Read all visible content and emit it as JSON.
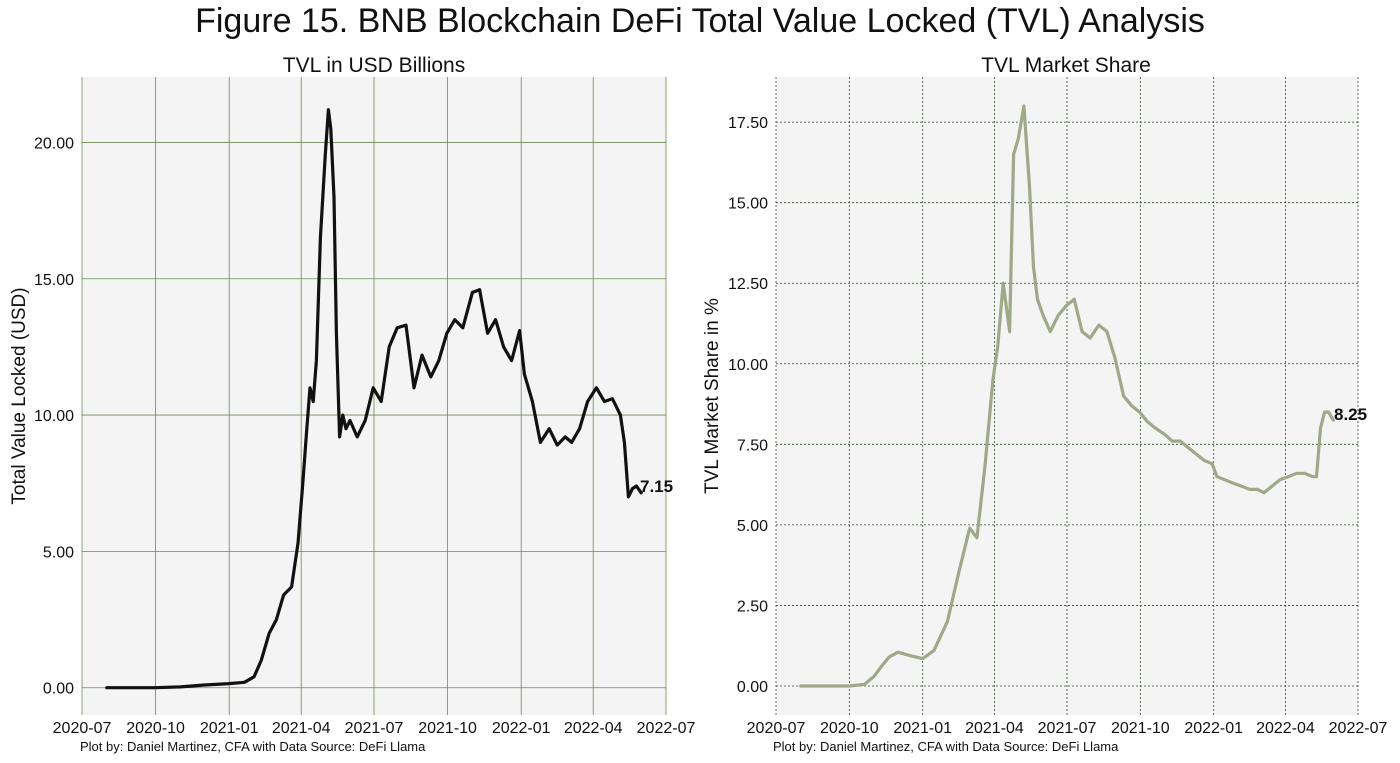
{
  "figure_title": "Figure 15. BNB Blockchain DeFi Total Value Locked (TVL) Analysis",
  "colors": {
    "left_line": "#111111",
    "right_line": "#9fa889",
    "left_grid": "#6f8a55",
    "right_grid": "#2f4a2a",
    "plot_bg": "#f4f4f4"
  },
  "chart_data": [
    {
      "type": "line",
      "title": "TVL in USD Billions",
      "xlabel": "",
      "ylabel": "Total Value Locked (USD)",
      "x_ticks": [
        "2020-07",
        "2020-10",
        "2021-01",
        "2021-04",
        "2021-07",
        "2021-10",
        "2022-01",
        "2022-04",
        "2022-07"
      ],
      "y_ticks": [
        "0.00",
        "5.00",
        "10.00",
        "15.00",
        "20.00"
      ],
      "xlim": [
        "2020-07-01",
        "2022-07-01"
      ],
      "ylim": [
        -1.0,
        22.4
      ],
      "grid": "solid",
      "end_label": "7.15",
      "credit": "Plot by: Daniel Martinez, CFA with Data Source: DeFi Llama",
      "series": [
        {
          "x": [
            "2020-08-01",
            "2020-09-01",
            "2020-10-01",
            "2020-11-01",
            "2020-12-01",
            "2021-01-01",
            "2021-01-20",
            "2021-02-01",
            "2021-02-10",
            "2021-02-20",
            "2021-03-01",
            "2021-03-10",
            "2021-03-20",
            "2021-03-28",
            "2021-04-03",
            "2021-04-08",
            "2021-04-12",
            "2021-04-16",
            "2021-04-20",
            "2021-04-25",
            "2021-05-01",
            "2021-05-05",
            "2021-05-08",
            "2021-05-12",
            "2021-05-15",
            "2021-05-19",
            "2021-05-23",
            "2021-05-27",
            "2021-06-01",
            "2021-06-10",
            "2021-06-20",
            "2021-06-30",
            "2021-07-10",
            "2021-07-20",
            "2021-07-30",
            "2021-08-10",
            "2021-08-20",
            "2021-08-30",
            "2021-09-10",
            "2021-09-20",
            "2021-09-30",
            "2021-10-10",
            "2021-10-20",
            "2021-11-01",
            "2021-11-10",
            "2021-11-20",
            "2021-11-30",
            "2021-12-10",
            "2021-12-20",
            "2021-12-30",
            "2022-01-05",
            "2022-01-15",
            "2022-01-25",
            "2022-02-05",
            "2022-02-15",
            "2022-02-25",
            "2022-03-05",
            "2022-03-15",
            "2022-03-25",
            "2022-04-05",
            "2022-04-15",
            "2022-04-25",
            "2022-05-05",
            "2022-05-10",
            "2022-05-15",
            "2022-05-20",
            "2022-05-25",
            "2022-05-31"
          ],
          "y": [
            0.0,
            0.0,
            0.0,
            0.03,
            0.1,
            0.15,
            0.2,
            0.4,
            1.0,
            2.0,
            2.5,
            3.4,
            3.7,
            5.3,
            7.5,
            9.5,
            11.0,
            10.5,
            12.0,
            16.5,
            19.5,
            21.2,
            20.5,
            18.0,
            13.0,
            9.2,
            10.0,
            9.5,
            9.8,
            9.2,
            9.8,
            11.0,
            10.5,
            12.5,
            13.2,
            13.3,
            11.0,
            12.2,
            11.4,
            12.0,
            13.0,
            13.5,
            13.2,
            14.5,
            14.6,
            13.0,
            13.5,
            12.5,
            12.0,
            13.1,
            11.5,
            10.5,
            9.0,
            9.5,
            8.9,
            9.2,
            9.0,
            9.5,
            10.5,
            11.0,
            10.5,
            10.6,
            10.0,
            9.0,
            7.0,
            7.3,
            7.4,
            7.15
          ],
          "color": "#111111"
        }
      ]
    },
    {
      "type": "line",
      "title": "TVL Market Share",
      "xlabel": "",
      "ylabel": "TVL Market Share in %",
      "x_ticks": [
        "2020-07",
        "2020-10",
        "2021-01",
        "2021-04",
        "2021-07",
        "2021-10",
        "2022-01",
        "2022-04",
        "2022-07"
      ],
      "y_ticks": [
        "0.00",
        "2.50",
        "5.00",
        "7.50",
        "10.00",
        "12.50",
        "15.00",
        "17.50"
      ],
      "xlim": [
        "2020-07-01",
        "2022-07-01"
      ],
      "ylim": [
        -0.9,
        18.9
      ],
      "grid": "dotted",
      "end_label": "8.25",
      "credit": "Plot by: Daniel Martinez, CFA with Data Source: DeFi Llama",
      "series": [
        {
          "x": [
            "2020-08-01",
            "2020-09-01",
            "2020-10-01",
            "2020-10-20",
            "2020-11-01",
            "2020-11-10",
            "2020-11-20",
            "2020-12-01",
            "2020-12-15",
            "2021-01-01",
            "2021-01-15",
            "2021-02-01",
            "2021-02-15",
            "2021-03-01",
            "2021-03-10",
            "2021-03-20",
            "2021-03-30",
            "2021-04-05",
            "2021-04-12",
            "2021-04-20",
            "2021-04-25",
            "2021-05-01",
            "2021-05-08",
            "2021-05-15",
            "2021-05-20",
            "2021-05-25",
            "2021-06-01",
            "2021-06-10",
            "2021-06-20",
            "2021-06-30",
            "2021-07-10",
            "2021-07-20",
            "2021-07-30",
            "2021-08-10",
            "2021-08-20",
            "2021-08-30",
            "2021-09-10",
            "2021-09-20",
            "2021-09-30",
            "2021-10-10",
            "2021-10-20",
            "2021-11-01",
            "2021-11-10",
            "2021-11-20",
            "2021-11-30",
            "2021-12-10",
            "2021-12-20",
            "2021-12-30",
            "2022-01-05",
            "2022-01-15",
            "2022-01-25",
            "2022-02-05",
            "2022-02-15",
            "2022-02-25",
            "2022-03-05",
            "2022-03-15",
            "2022-03-25",
            "2022-04-05",
            "2022-04-15",
            "2022-04-25",
            "2022-05-05",
            "2022-05-10",
            "2022-05-15",
            "2022-05-20",
            "2022-05-25",
            "2022-05-31"
          ],
          "y": [
            0.0,
            0.0,
            0.0,
            0.05,
            0.3,
            0.6,
            0.9,
            1.05,
            0.95,
            0.85,
            1.1,
            2.0,
            3.5,
            4.9,
            4.6,
            6.8,
            9.5,
            10.5,
            12.5,
            11.0,
            16.5,
            17.0,
            18.0,
            15.5,
            13.0,
            12.0,
            11.5,
            11.0,
            11.5,
            11.8,
            12.0,
            11.0,
            10.8,
            11.2,
            11.0,
            10.2,
            9.0,
            8.7,
            8.5,
            8.2,
            8.0,
            7.8,
            7.6,
            7.6,
            7.4,
            7.2,
            7.0,
            6.9,
            6.5,
            6.4,
            6.3,
            6.2,
            6.1,
            6.1,
            6.0,
            6.2,
            6.4,
            6.5,
            6.6,
            6.6,
            6.5,
            6.5,
            8.0,
            8.5,
            8.5,
            8.25
          ],
          "color": "#9fa889"
        }
      ]
    }
  ]
}
